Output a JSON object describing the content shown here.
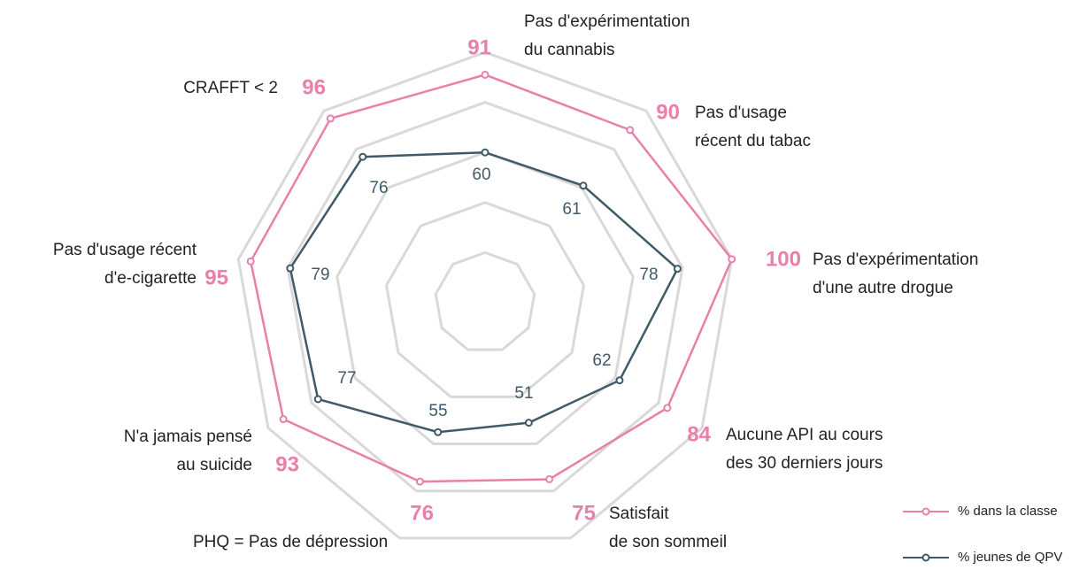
{
  "chart_data": {
    "type": "radar",
    "categories": [
      [
        "Pas d'expérimentation",
        "du cannabis"
      ],
      [
        "Pas d'usage",
        "récent du tabac"
      ],
      [
        "Pas d'expérimentation",
        "d'une autre drogue"
      ],
      [
        "Aucune API au cours",
        "des 30 derniers jours"
      ],
      [
        "Satisfait",
        "de son sommeil"
      ],
      [
        "PHQ = Pas de dépression"
      ],
      [
        "N'a jamais pensé",
        "au suicide"
      ],
      [
        "Pas d'usage récent",
        "d'e-cigarette"
      ],
      [
        "CRAFFT < 2"
      ]
    ],
    "series": [
      {
        "name": "% dans la classe",
        "color": "#e97fab",
        "values": [
          91,
          90,
          100,
          84,
          75,
          76,
          93,
          95,
          96
        ]
      },
      {
        "name": "% jeunes de QPV",
        "color": "#3f5b69",
        "values": [
          60,
          61,
          78,
          62,
          51,
          55,
          77,
          79,
          76
        ]
      }
    ],
    "rlim": [
      0,
      100
    ],
    "rticks": [
      20,
      40,
      60,
      80,
      100
    ],
    "grid": true
  }
}
